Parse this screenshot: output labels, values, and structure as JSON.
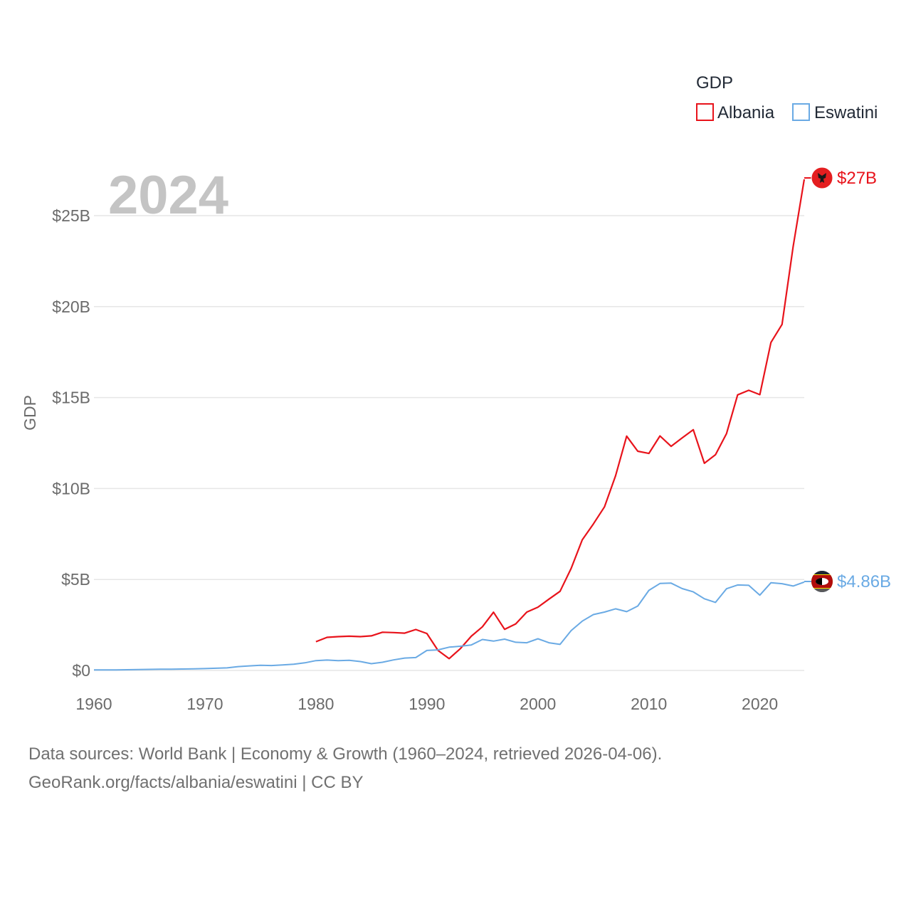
{
  "chart_data": {
    "type": "line",
    "legend_title": "GDP",
    "ylabel": "GDP",
    "year_label": "2024",
    "xlim": [
      1960,
      2024
    ],
    "ylim": [
      0,
      27000000000
    ],
    "x_ticks": [
      1960,
      1970,
      1980,
      1990,
      2000,
      2010,
      2020
    ],
    "x_tick_labels": [
      "1960",
      "1970",
      "1980",
      "1990",
      "2000",
      "2010",
      "2020"
    ],
    "y_ticks": [
      0,
      5000000000,
      10000000000,
      15000000000,
      20000000000,
      25000000000
    ],
    "y_tick_labels": [
      "$0",
      "$5B",
      "$10B",
      "$15B",
      "$20B",
      "$25B"
    ],
    "legend_position": "top-right",
    "series": [
      {
        "name": "Albania",
        "color": "#e8131b",
        "end_label": "$27B",
        "start_year": 1980,
        "values": [
          1.58,
          1.82,
          1.86,
          1.88,
          1.86,
          1.9,
          2.1,
          2.08,
          2.05,
          2.25,
          2.03,
          1.1,
          0.65,
          1.19,
          1.88,
          2.4,
          3.2,
          2.26,
          2.56,
          3.21,
          3.48,
          3.92,
          4.35,
          5.61,
          7.18,
          8.05,
          8.99,
          10.7,
          12.88,
          12.05,
          11.93,
          12.89,
          12.32,
          12.78,
          13.23,
          11.39,
          11.86,
          13.02,
          15.15,
          15.4,
          15.16,
          18.03,
          19.02,
          23.3,
          27.0
        ]
      },
      {
        "name": "Eswatini",
        "color": "#6aaae4",
        "end_label": "$4.86B",
        "start_year": 1960,
        "values": [
          0.03,
          0.03,
          0.03,
          0.04,
          0.05,
          0.06,
          0.07,
          0.07,
          0.08,
          0.09,
          0.1,
          0.12,
          0.14,
          0.21,
          0.25,
          0.28,
          0.27,
          0.3,
          0.34,
          0.42,
          0.54,
          0.57,
          0.54,
          0.56,
          0.49,
          0.37,
          0.45,
          0.58,
          0.68,
          0.71,
          1.1,
          1.13,
          1.28,
          1.33,
          1.4,
          1.7,
          1.61,
          1.72,
          1.55,
          1.52,
          1.74,
          1.52,
          1.43,
          2.19,
          2.71,
          3.07,
          3.21,
          3.39,
          3.23,
          3.54,
          4.4,
          4.78,
          4.8,
          4.5,
          4.32,
          3.94,
          3.74,
          4.49,
          4.7,
          4.68,
          4.14,
          4.82,
          4.77,
          4.64,
          4.86
        ]
      }
    ]
  },
  "footer": {
    "line1": "Data sources: World Bank | Economy & Growth (1960–2024, retrieved 2026-04-06).",
    "line2": "GeoRank.org/facts/albania/eswatini | CC BY"
  },
  "icons": {
    "albania_flag": "albania-flag-icon",
    "eswatini_flag": "eswatini-flag-icon"
  }
}
